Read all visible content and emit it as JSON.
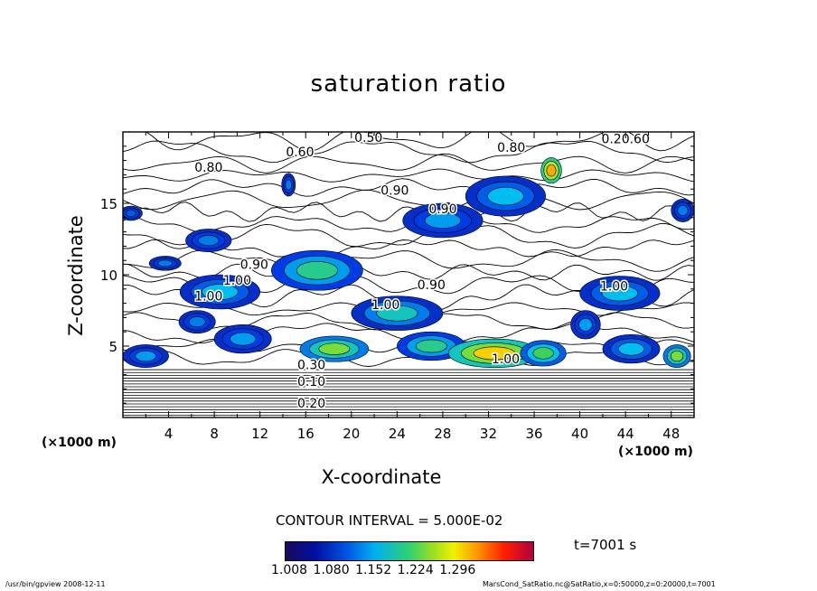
{
  "chart_data": {
    "type": "heatmap",
    "title": "saturation ratio",
    "xlabel": "X-coordinate",
    "ylabel": "Z-coordinate",
    "x_unit": "(×1000 m)",
    "y_unit": "(×1000 m)",
    "xlim": [
      0,
      50
    ],
    "ylim": [
      0,
      20
    ],
    "x_ticks": [
      4,
      8,
      12,
      16,
      20,
      24,
      28,
      32,
      36,
      40,
      44,
      48
    ],
    "y_ticks": [
      5,
      10,
      15
    ],
    "contour_interval": "CONTOUR INTERVAL = 5.000E-02",
    "colorbar_ticks": [
      "1.008",
      "1.080",
      "1.152",
      "1.224",
      "1.296"
    ],
    "colorbar_range": [
      1.0,
      1.3
    ],
    "time": "t=7001 s",
    "contour_labels": [
      {
        "text": "0.50",
        "x": 21.5,
        "z": 19.3
      },
      {
        "text": "0.20.60",
        "x": 44.0,
        "z": 19.2
      },
      {
        "text": "0.80",
        "x": 34.0,
        "z": 18.6
      },
      {
        "text": "0.60",
        "x": 15.5,
        "z": 18.3
      },
      {
        "text": "0.80",
        "x": 7.5,
        "z": 17.2
      },
      {
        "text": "0.90",
        "x": 23.8,
        "z": 15.6
      },
      {
        "text": "0.90",
        "x": 28.0,
        "z": 14.3
      },
      {
        "text": "0.90",
        "x": 11.5,
        "z": 10.4
      },
      {
        "text": "1.00",
        "x": 10.0,
        "z": 9.3
      },
      {
        "text": "1.00",
        "x": 7.5,
        "z": 8.2
      },
      {
        "text": "0.90",
        "x": 27.0,
        "z": 9.0
      },
      {
        "text": "1.00",
        "x": 23.0,
        "z": 7.6
      },
      {
        "text": "1.00",
        "x": 43.0,
        "z": 8.9
      },
      {
        "text": "1.00",
        "x": 33.5,
        "z": 3.8
      },
      {
        "text": "0.30",
        "x": 16.5,
        "z": 3.4
      },
      {
        "text": "0.10",
        "x": 16.5,
        "z": 2.2
      },
      {
        "text": "0.20",
        "x": 16.5,
        "z": 0.7
      }
    ],
    "saturated_regions": [
      {
        "x": 0.7,
        "z": 14.3,
        "rx": 1.0,
        "rz": 0.5,
        "level": 0.25
      },
      {
        "x": 7.5,
        "z": 12.4,
        "rx": 2.0,
        "rz": 0.8,
        "level": 0.3
      },
      {
        "x": 3.7,
        "z": 10.8,
        "rx": 1.4,
        "rz": 0.5,
        "level": 0.3
      },
      {
        "x": 14.5,
        "z": 16.3,
        "rx": 0.6,
        "rz": 0.8,
        "level": 0.3
      },
      {
        "x": 28.0,
        "z": 13.8,
        "rx": 3.5,
        "rz": 1.2,
        "level": 0.35
      },
      {
        "x": 33.5,
        "z": 15.5,
        "rx": 3.5,
        "rz": 1.4,
        "level": 0.4
      },
      {
        "x": 37.5,
        "z": 17.3,
        "rx": 0.9,
        "rz": 0.9,
        "level": 0.8
      },
      {
        "x": 49.0,
        "z": 14.5,
        "rx": 1.0,
        "rz": 0.8,
        "level": 0.3
      },
      {
        "x": 8.5,
        "z": 8.8,
        "rx": 3.5,
        "rz": 1.2,
        "level": 0.4
      },
      {
        "x": 17.0,
        "z": 10.3,
        "rx": 4.0,
        "rz": 1.4,
        "level": 0.5
      },
      {
        "x": 24.0,
        "z": 7.3,
        "rx": 4.0,
        "rz": 1.2,
        "level": 0.45
      },
      {
        "x": 6.5,
        "z": 6.7,
        "rx": 1.6,
        "rz": 0.8,
        "level": 0.3
      },
      {
        "x": 43.5,
        "z": 8.7,
        "rx": 3.5,
        "rz": 1.2,
        "level": 0.4
      },
      {
        "x": 40.5,
        "z": 6.5,
        "rx": 1.3,
        "rz": 1.0,
        "level": 0.35
      },
      {
        "x": 2.0,
        "z": 4.3,
        "rx": 2.0,
        "rz": 0.8,
        "level": 0.35
      },
      {
        "x": 10.5,
        "z": 5.5,
        "rx": 2.5,
        "rz": 1.0,
        "level": 0.35
      },
      {
        "x": 18.5,
        "z": 4.8,
        "rx": 3.0,
        "rz": 0.9,
        "level": 0.6
      },
      {
        "x": 27.0,
        "z": 5.0,
        "rx": 3.0,
        "rz": 1.0,
        "level": 0.5
      },
      {
        "x": 32.5,
        "z": 4.5,
        "rx": 4.0,
        "rz": 1.0,
        "level": 0.75
      },
      {
        "x": 36.8,
        "z": 4.5,
        "rx": 2.0,
        "rz": 0.9,
        "level": 0.55
      },
      {
        "x": 44.5,
        "z": 4.8,
        "rx": 2.5,
        "rz": 1.0,
        "level": 0.4
      },
      {
        "x": 48.5,
        "z": 4.3,
        "rx": 1.2,
        "rz": 0.8,
        "level": 0.6
      }
    ]
  },
  "footer": {
    "left": "/usr/bin/gpview  2008-12-11",
    "right": "MarsCond_SatRatio.nc@SatRatio,x=0:50000,z=0:20000,t=7001"
  }
}
